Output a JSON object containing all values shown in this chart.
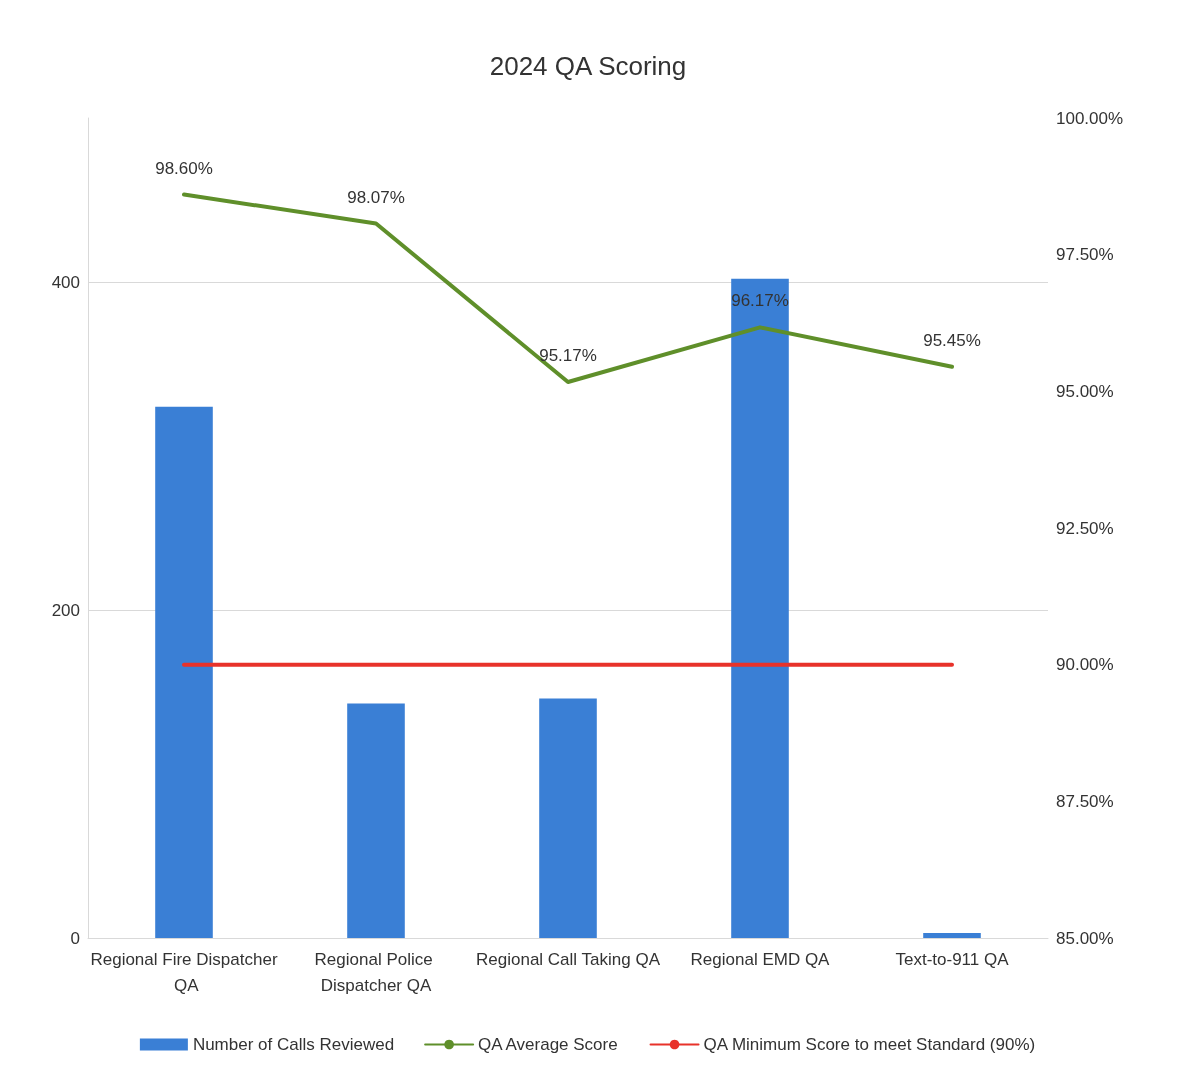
{
  "chart_data": {
    "type": "bar",
    "title": "2024 QA Scoring",
    "categories": [
      "Regional Fire Dispatcher QA",
      "Regional Police Dispatcher QA",
      "Regional Call Taking QA",
      "Regional EMD QA",
      "Text-to-911 QA"
    ],
    "series": [
      {
        "name": "Number of Calls Reviewed",
        "color": "#3a7fd5",
        "values": [
          324,
          143,
          146,
          402,
          3
        ]
      },
      {
        "name": "QA Average Score",
        "type": "line",
        "axis": "y2",
        "color": "#5f8f2a",
        "values": [
          98.6,
          98.07,
          95.17,
          96.17,
          95.45
        ],
        "value_labels": [
          "98.60%",
          "98.07%",
          "95.17%",
          "96.17%",
          "95.45%"
        ]
      },
      {
        "name": "QA Minimum Score to meet Standard (90%)",
        "type": "line",
        "axis": "y2",
        "color": "#e8322a",
        "values": [
          90,
          90,
          90,
          90,
          90
        ]
      }
    ],
    "ylim": [
      0,
      500
    ],
    "yticks": [
      0,
      200,
      400
    ],
    "y2lim": [
      85,
      100
    ],
    "y2ticks": [
      {
        "value": 85,
        "label": "85.00%"
      },
      {
        "value": 87.5,
        "label": "87.50%"
      },
      {
        "value": 90,
        "label": "90.00%"
      },
      {
        "value": 92.5,
        "label": "92.50%"
      },
      {
        "value": 95,
        "label": "95.00%"
      },
      {
        "value": 97.5,
        "label": "97.50%"
      },
      {
        "value": 100,
        "label": "100.00%"
      }
    ],
    "grid": "y",
    "legend": "bottom",
    "marker": "none"
  }
}
